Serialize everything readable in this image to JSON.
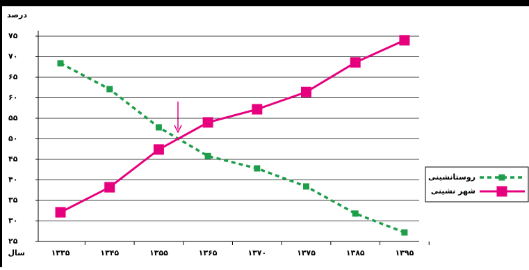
{
  "chart_data": {
    "type": "line",
    "y_label": "درصد",
    "x_label": "سال",
    "categories": [
      "۱۳۳۵",
      "۱۳۴۵",
      "۱۳۵۵",
      "۱۳۶۵",
      "۱۳۷۰",
      "۱۳۷۵",
      "۱۳۸۵",
      "۱۳۹۵"
    ],
    "series": [
      {
        "name": "روستانشینی",
        "color": "#1e9e4a",
        "dashed": true,
        "values": [
          68.4,
          62.1,
          52.8,
          45.8,
          42.8,
          38.4,
          31.8,
          27.2
        ]
      },
      {
        "name": "شهر نشینی",
        "color": "#e6007e",
        "dashed": false,
        "values": [
          32.1,
          38.2,
          47.4,
          54.0,
          57.2,
          61.4,
          68.6,
          74.0
        ]
      }
    ],
    "ylim": [
      25,
      75
    ],
    "yticks": [
      {
        "value": 25,
        "label": "۲۵"
      },
      {
        "value": 30,
        "label": "۳۰"
      },
      {
        "value": 35,
        "label": "۳۵"
      },
      {
        "value": 40,
        "label": "۴۰"
      },
      {
        "value": 45,
        "label": "۴۵"
      },
      {
        "value": 50,
        "label": "۵۰"
      },
      {
        "value": 55,
        "label": "۵۵"
      },
      {
        "value": 60,
        "label": "۶۰"
      },
      {
        "value": 65,
        "label": "۶۵"
      },
      {
        "value": 70,
        "label": "۷۰"
      },
      {
        "value": 75,
        "label": "۷۵"
      }
    ],
    "grid": true,
    "legend": "right"
  }
}
